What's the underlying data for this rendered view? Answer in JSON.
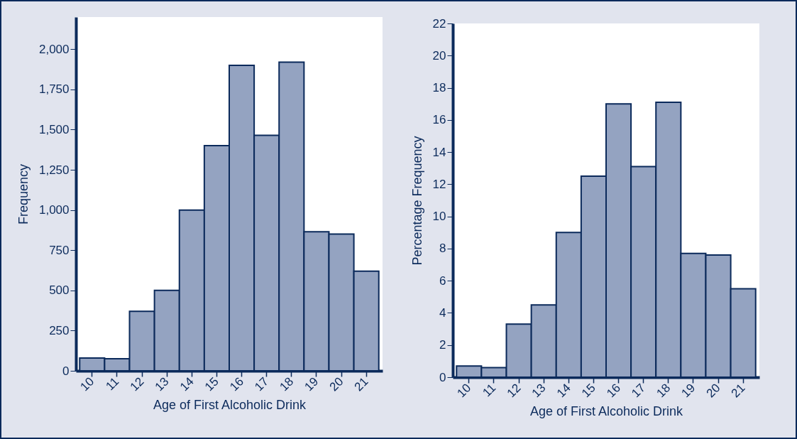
{
  "chart_data": [
    {
      "type": "bar",
      "categories": [
        "10",
        "11",
        "12",
        "13",
        "14",
        "15",
        "16",
        "17",
        "18",
        "19",
        "20",
        "21"
      ],
      "values": [
        80,
        75,
        370,
        500,
        1000,
        1400,
        1900,
        1465,
        1920,
        865,
        850,
        620
      ],
      "color": "#94a3c1",
      "xlabel": "Age of First Alcoholic Drink",
      "ylabel": "Frequency",
      "ylim": [
        0,
        2200
      ],
      "yticks": [
        0,
        250,
        500,
        750,
        {
          "value": 1000,
          "label": "1,000"
        },
        {
          "value": 1250,
          "label": "1,250"
        },
        {
          "value": 1500,
          "label": "1,500"
        },
        {
          "value": 1750,
          "label": "1,750"
        },
        {
          "value": 2000,
          "label": "2,000"
        }
      ]
    },
    {
      "type": "bar",
      "categories": [
        "10",
        "11",
        "12",
        "13",
        "14",
        "15",
        "16",
        "17",
        "18",
        "19",
        "20",
        "21"
      ],
      "values": [
        0.7,
        0.6,
        3.3,
        4.5,
        9.0,
        12.5,
        17.0,
        13.1,
        17.1,
        7.7,
        7.6,
        5.5
      ],
      "color": "#94a3c1",
      "xlabel": "Age of First Alcoholic Drink",
      "ylabel": "Percentage Frequency",
      "ylim": [
        0,
        22
      ],
      "yticks": [
        0,
        2,
        4,
        6,
        8,
        10,
        12,
        14,
        16,
        18,
        20,
        22
      ]
    }
  ]
}
